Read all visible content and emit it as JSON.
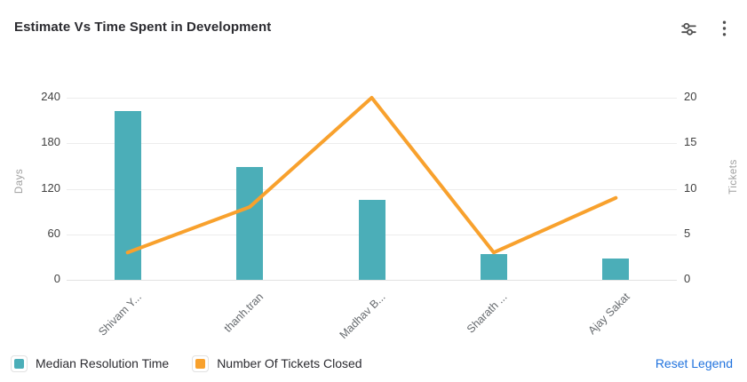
{
  "header": {
    "title": "Estimate Vs Time Spent in Development",
    "icons": [
      {
        "name": "sliders-icon",
        "meaning": "chart settings"
      },
      {
        "name": "kebab-menu-icon",
        "meaning": "more options"
      }
    ]
  },
  "chart_data": {
    "type": "bar",
    "subtype": "combo-bar-line",
    "title": "Estimate Vs Time Spent in Development",
    "categories": [
      "Shivam Y...",
      "thanh.tran",
      "Madhav B...",
      "Sharath ...",
      "Ajay Sakat"
    ],
    "series": [
      {
        "name": "Median Resolution Time",
        "type": "bar",
        "axis": "left",
        "color": "#4BAEB8",
        "values": [
          222,
          149,
          105,
          34,
          28
        ]
      },
      {
        "name": "Number Of Tickets Closed",
        "type": "line",
        "axis": "right",
        "color": "#F8A12D",
        "values": [
          3,
          8,
          20,
          3,
          9
        ]
      }
    ],
    "left_axis": {
      "label": "Days",
      "ticks": [
        0,
        60,
        120,
        180,
        240
      ],
      "min": 0,
      "max": 240
    },
    "right_axis": {
      "label": "Tickets",
      "ticks": [
        0,
        5,
        10,
        15,
        20
      ],
      "min": 0,
      "max": 20
    },
    "grid": true,
    "legend_position": "bottom"
  },
  "legend": {
    "items": [
      {
        "label": "Median Resolution Time",
        "color": "#4BAEB8"
      },
      {
        "label": "Number Of Tickets Closed",
        "color": "#F8A12D"
      }
    ],
    "reset_label": "Reset Legend",
    "reset_color": "#2173de"
  },
  "colors": {
    "bar": "#4BAEB8",
    "line": "#F8A12D",
    "gridline": "#ececec",
    "tick_text": "#414141",
    "axis_name_text": "#9e9e9e",
    "icon": "#4f4f4f"
  }
}
